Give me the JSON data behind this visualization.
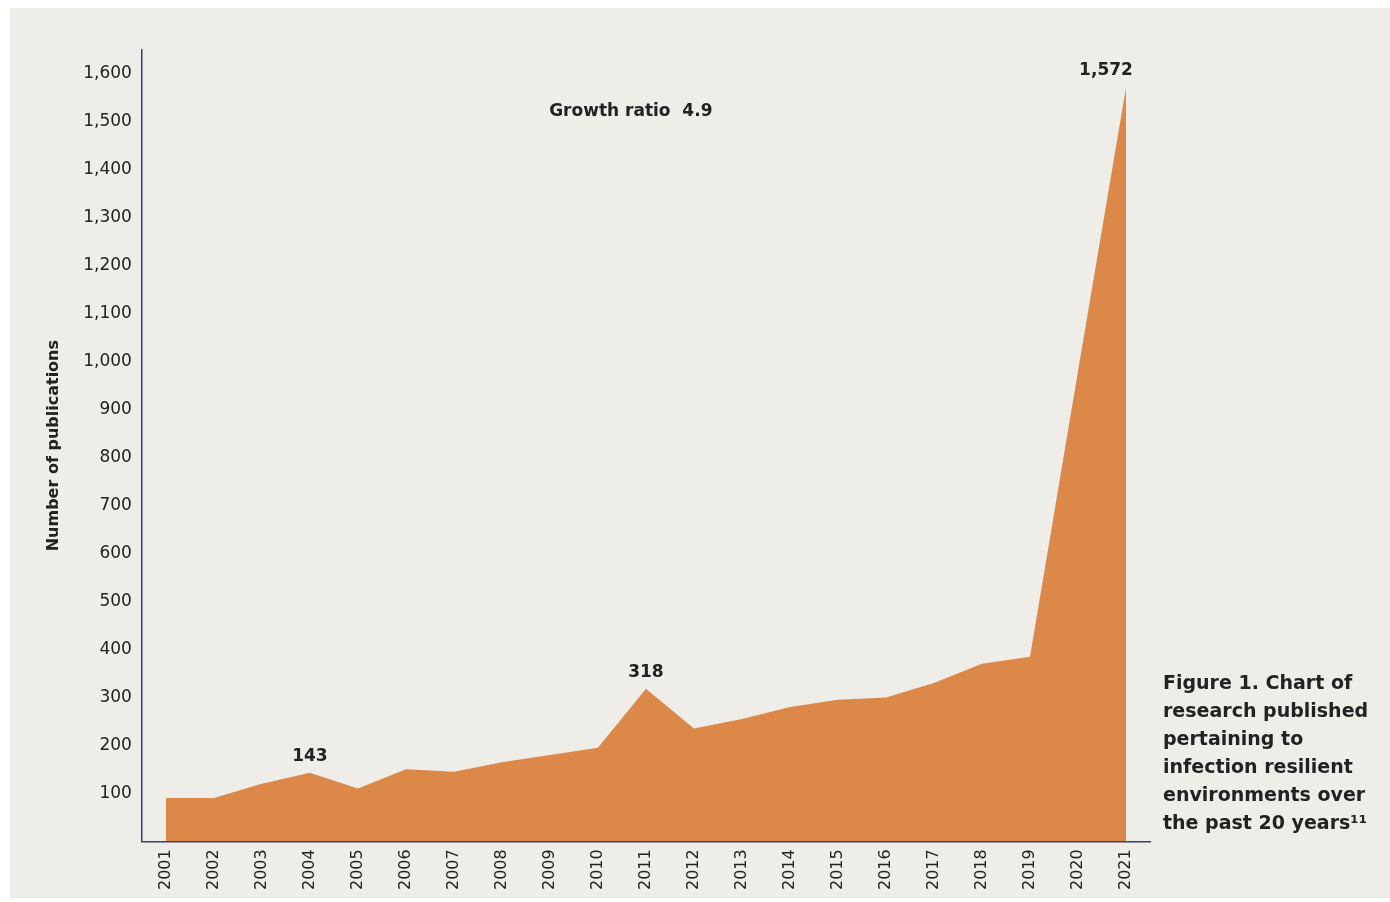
{
  "chart_data": {
    "type": "area",
    "categories": [
      "2001",
      "2002",
      "2003",
      "2004",
      "2005",
      "2006",
      "2007",
      "2008",
      "2009",
      "2010",
      "2011",
      "2012",
      "2013",
      "2014",
      "2015",
      "2016",
      "2017",
      "2018",
      "2019",
      "2020",
      "2021"
    ],
    "series": [
      {
        "color": "#dc8848",
        "values": [
          90,
          90,
          120,
          143,
          110,
          150,
          145,
          165,
          180,
          195,
          318,
          235,
          255,
          280,
          295,
          300,
          330,
          370,
          385,
          980,
          1572
        ],
        "value_labels": [
          null,
          null,
          null,
          "143",
          null,
          null,
          null,
          null,
          null,
          null,
          "318",
          null,
          null,
          null,
          null,
          null,
          null,
          null,
          null,
          null,
          "1,572"
        ]
      }
    ],
    "ylabel": "Number of publications",
    "ylim": [
      0,
      1650
    ],
    "yticks": [
      {
        "value": 100,
        "label": "100"
      },
      {
        "value": 200,
        "label": "200"
      },
      {
        "value": 300,
        "label": "300"
      },
      {
        "value": 400,
        "label": "400"
      },
      {
        "value": 500,
        "label": "500"
      },
      {
        "value": 600,
        "label": "600"
      },
      {
        "value": 700,
        "label": "700"
      },
      {
        "value": 800,
        "label": "800"
      },
      {
        "value": 900,
        "label": "900"
      },
      {
        "value": 1000,
        "label": "1,000"
      },
      {
        "value": 1100,
        "label": "1,100"
      },
      {
        "value": 1200,
        "label": "1,200"
      },
      {
        "value": 1300,
        "label": "1,300"
      },
      {
        "value": 1400,
        "label": "1,400"
      },
      {
        "value": 1500,
        "label": "1,500"
      },
      {
        "value": 1600,
        "label": "1,600"
      }
    ],
    "grid": false,
    "legend": false,
    "annotations": [
      "Growth ratio  4.9",
      "Figure 1. Chart of research published pertaining to infection resilient environments over the past 20 years¹¹"
    ]
  }
}
